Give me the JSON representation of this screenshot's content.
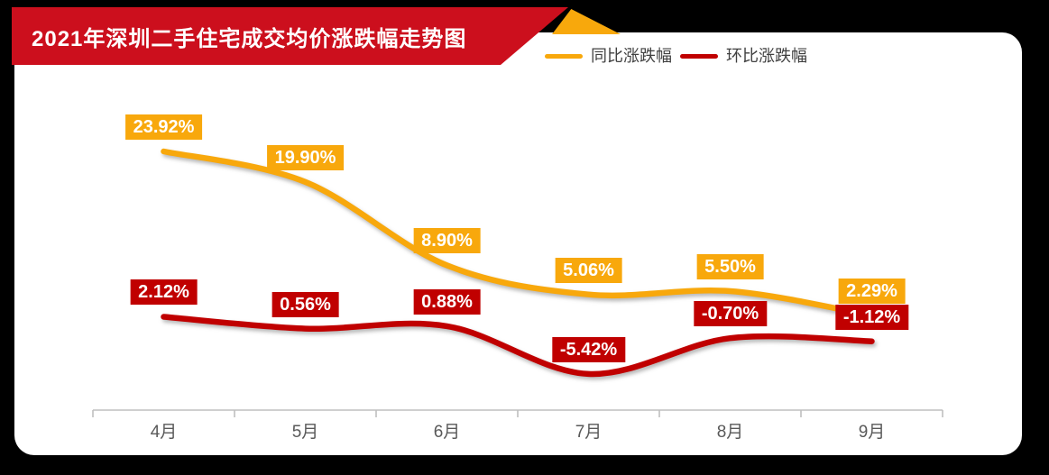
{
  "banner": {
    "title": "2021年深圳二手住宅成交均价涨跌幅走势图"
  },
  "legend": [
    {
      "key": "yoy",
      "label": "同比涨跌幅",
      "color": "#F8A80C"
    },
    {
      "key": "mom",
      "label": "环比涨跌幅",
      "color": "#C00000"
    }
  ],
  "colors": {
    "background": "#000000",
    "card": "#FFFFFF",
    "banner_red": "#CC0F1D",
    "gold": "#F8A80C",
    "dark_red": "#C00000",
    "axis_line": "#BFBFBF",
    "axis_text": "#595959",
    "legend_text": "#404040",
    "label_text": "#FFFFFF"
  },
  "chart_data": {
    "type": "line",
    "title": "2021年深圳二手住宅成交均价涨跌幅走势图",
    "categories": [
      "4月",
      "5月",
      "6月",
      "7月",
      "8月",
      "9月"
    ],
    "series": [
      {
        "key": "yoy",
        "name": "同比涨跌幅",
        "color": "#F8A80C",
        "values": [
          23.92,
          19.9,
          8.9,
          5.06,
          5.5,
          2.29
        ],
        "labels": [
          "23.92%",
          "19.90%",
          "8.90%",
          "5.06%",
          "5.50%",
          "2.29%"
        ]
      },
      {
        "key": "mom",
        "name": "环比涨跌幅",
        "color": "#C00000",
        "values": [
          2.12,
          0.56,
          0.88,
          -5.42,
          -0.7,
          -1.12
        ],
        "labels": [
          "2.12%",
          "0.56%",
          "0.88%",
          "-5.42%",
          "-0.70%",
          "-1.12%"
        ]
      }
    ],
    "xlabel": "",
    "ylabel": "",
    "smooth": true,
    "data_labels": "on",
    "grid": false,
    "legend_position": "top-right",
    "y_axis_visible": false
  }
}
